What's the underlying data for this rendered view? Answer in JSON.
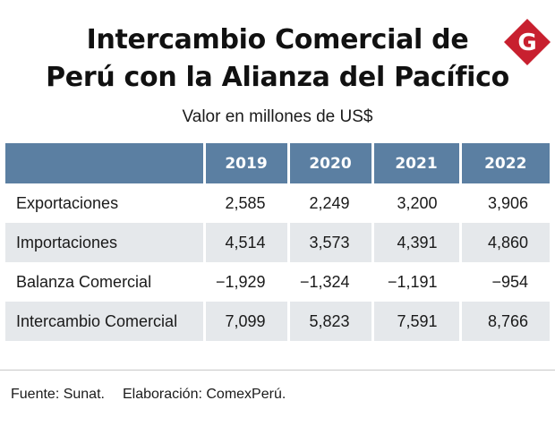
{
  "title_line1": "Intercambio Comercial de",
  "title_line2": "Perú con la Alianza del Pacífico",
  "subtitle": "Valor en millones de US$",
  "logo": {
    "letter": "G",
    "icon": "gestion-logo-icon",
    "color": "#c8202f"
  },
  "colors": {
    "header_bg": "#5b7fa2",
    "row_alt": "#e5e8eb"
  },
  "chart_data": {
    "type": "table",
    "title": "Intercambio Comercial de Perú con la Alianza del Pacífico",
    "subtitle": "Valor en millones de US$",
    "columns": [
      "",
      "2019",
      "2020",
      "2021",
      "2022"
    ],
    "rows": [
      {
        "label": "Exportaciones",
        "values": [
          "2,585",
          "2,249",
          "3,200",
          "3,906"
        ]
      },
      {
        "label": "Importaciones",
        "values": [
          "4,514",
          "3,573",
          "4,391",
          "4,860"
        ]
      },
      {
        "label": "Balanza Comercial",
        "values": [
          "-1,929",
          "-1,324",
          "-1,191",
          "-954"
        ]
      },
      {
        "label": "Intercambio Comercial",
        "values": [
          "7,099",
          "5,823",
          "7,591",
          "8,766"
        ]
      }
    ]
  },
  "footer": {
    "source": "Fuente: Sunat.",
    "credit": "Elaboración: ComexPerú."
  }
}
